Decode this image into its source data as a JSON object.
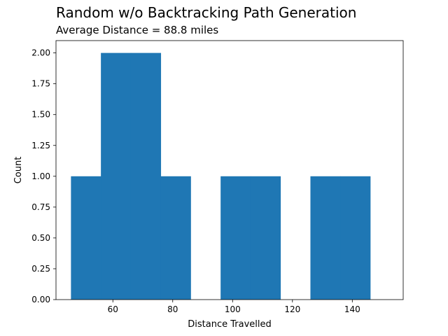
{
  "chart_data": {
    "type": "bar",
    "title": "Random w/o Backtracking Path Generation",
    "subtitle": "Average Distance = 88.8 miles",
    "xlabel": "Distance Travelled",
    "ylabel": "Count",
    "xlim": [
      41,
      157
    ],
    "ylim": [
      0,
      2.1
    ],
    "x_ticks": [
      60,
      80,
      100,
      120,
      140
    ],
    "x_tick_labels": [
      "60",
      "80",
      "100",
      "120",
      "140"
    ],
    "y_ticks": [
      0,
      0.25,
      0.5,
      0.75,
      1.0,
      1.25,
      1.5,
      1.75,
      2.0
    ],
    "y_tick_labels": [
      "0.00",
      "0.25",
      "0.50",
      "0.75",
      "1.00",
      "1.25",
      "1.50",
      "1.75",
      "2.00"
    ],
    "bins": [
      {
        "x0": 46,
        "x1": 56,
        "count": 1
      },
      {
        "x0": 56,
        "x1": 66,
        "count": 2
      },
      {
        "x0": 66,
        "x1": 76,
        "count": 2
      },
      {
        "x0": 76,
        "x1": 86,
        "count": 1
      },
      {
        "x0": 86,
        "x1": 96,
        "count": 0
      },
      {
        "x0": 96,
        "x1": 106,
        "count": 1
      },
      {
        "x0": 106,
        "x1": 116,
        "count": 1
      },
      {
        "x0": 116,
        "x1": 126,
        "count": 0
      },
      {
        "x0": 126,
        "x1": 136,
        "count": 1
      },
      {
        "x0": 136,
        "x1": 146,
        "count": 1
      }
    ],
    "bar_color": "#1f77b4",
    "grid": false
  }
}
